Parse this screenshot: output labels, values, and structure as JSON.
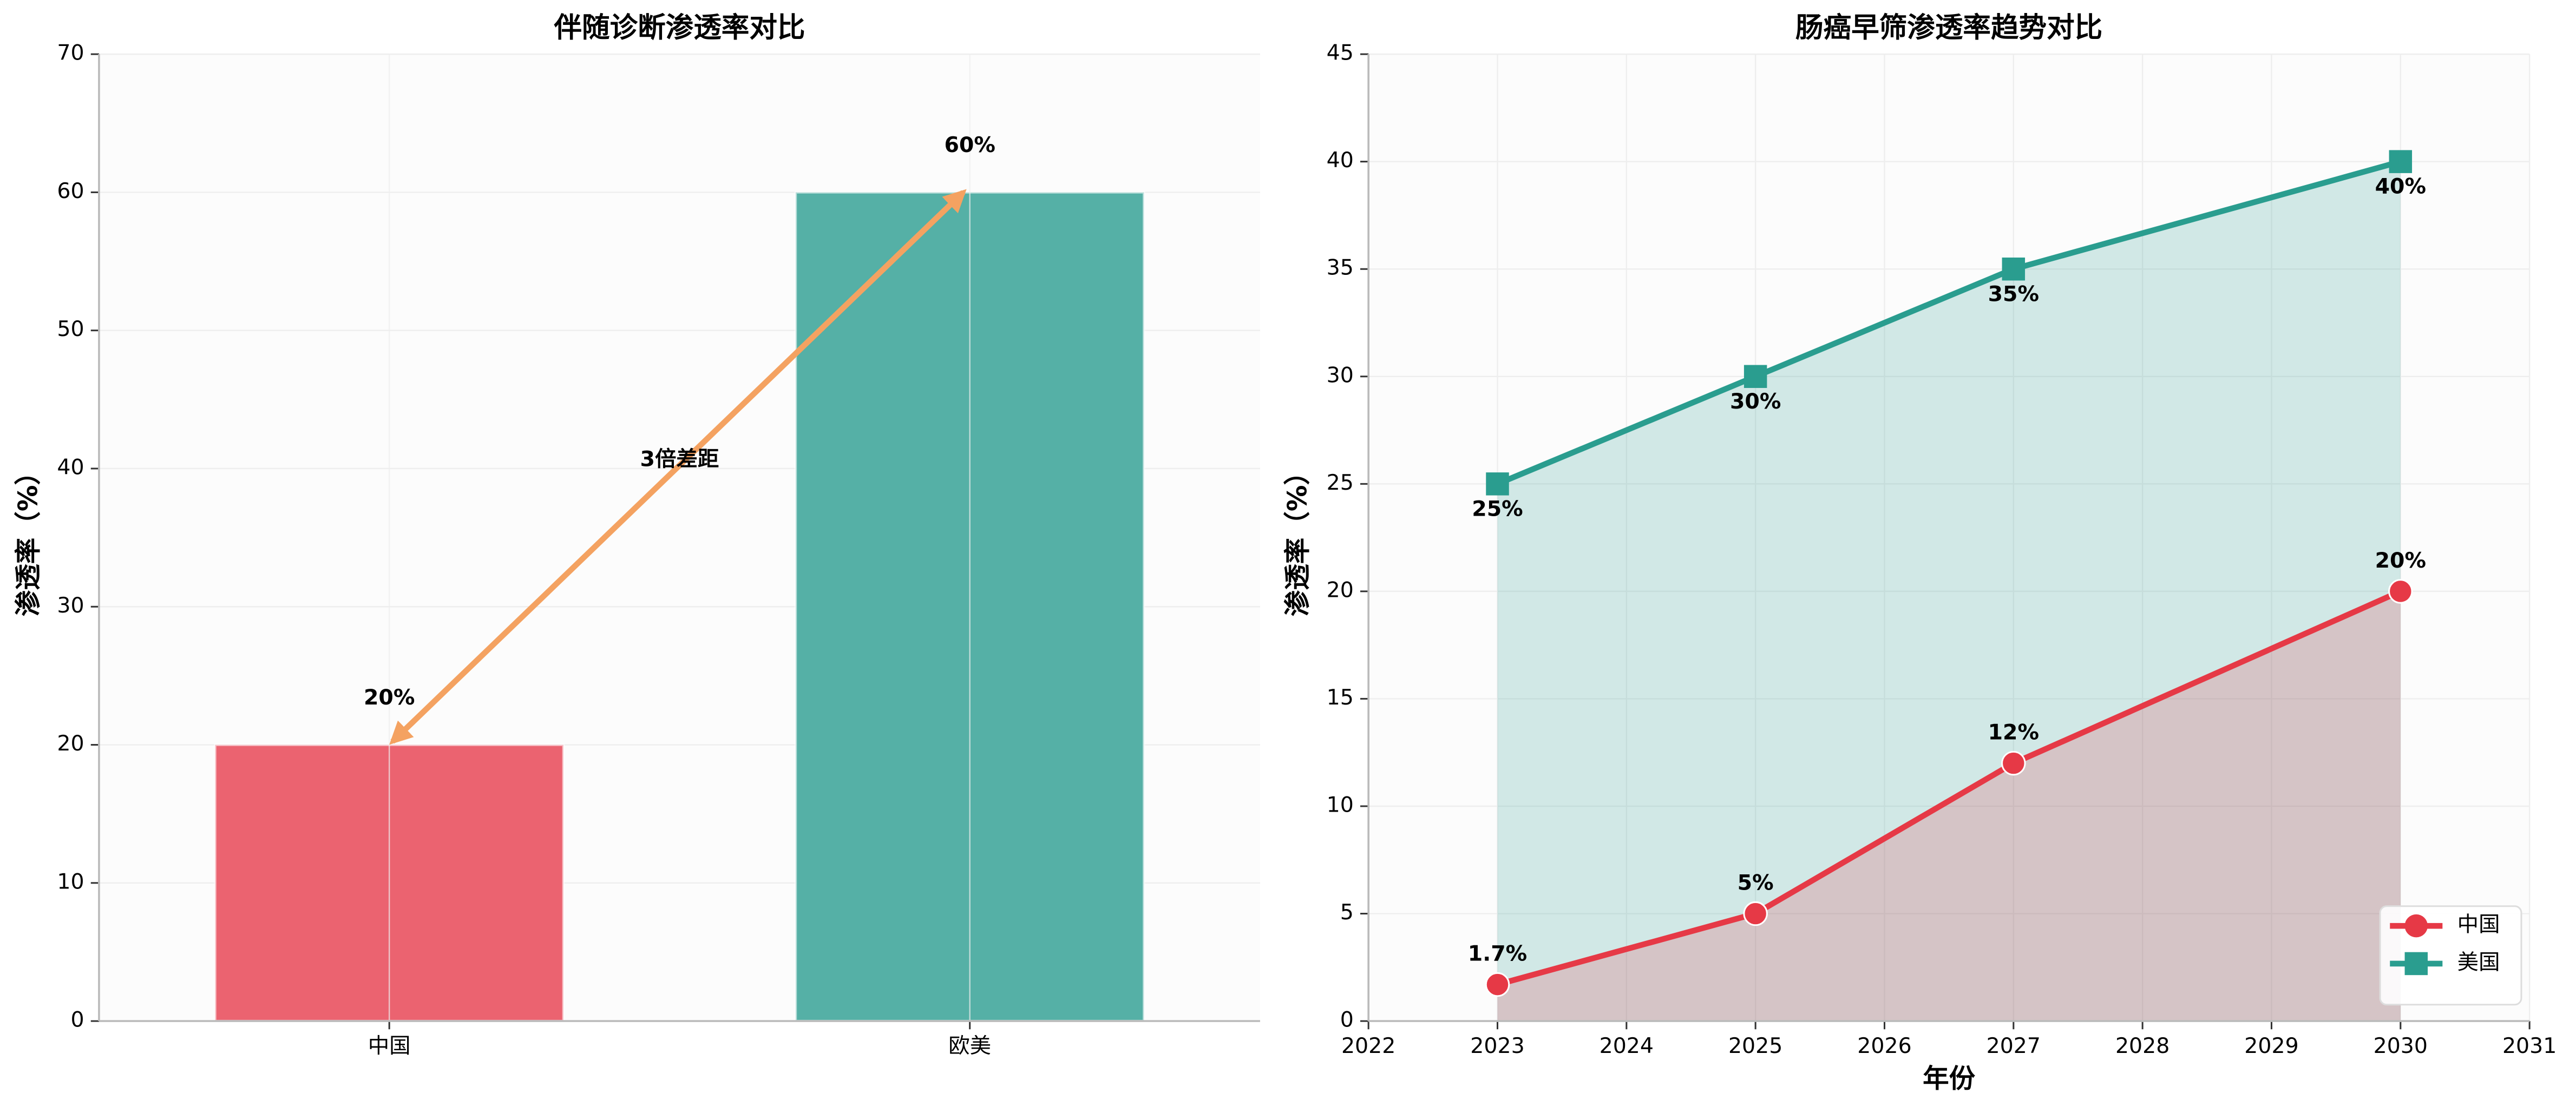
{
  "chart_data": [
    {
      "type": "bar",
      "title": "伴随诊断渗透率对比",
      "ylabel": "渗透率（%）",
      "categories": [
        "中国",
        "欧美"
      ],
      "values": [
        20,
        60
      ],
      "value_labels": [
        "20%",
        "60%"
      ],
      "colors": [
        "#eb6370",
        "#55b0a6"
      ],
      "ylim": [
        0,
        70
      ],
      "yticks": [
        0,
        10,
        20,
        30,
        40,
        50,
        60,
        70
      ],
      "grid": true,
      "annotation": "3倍差距",
      "annotation_color": "#f4a261"
    },
    {
      "type": "line",
      "title": "肠癌早筛渗透率趋势对比",
      "xlabel": "年份",
      "ylabel": "渗透率（%）",
      "x": [
        2023,
        2025,
        2027,
        2030
      ],
      "series": [
        {
          "name": "中国",
          "color": "#e63946",
          "marker": "circle",
          "values": [
            1.7,
            5,
            12,
            20
          ],
          "value_labels": [
            "1.7%",
            "5%",
            "12%",
            "20%"
          ]
        },
        {
          "name": "美国",
          "color": "#2a9d8f",
          "marker": "square",
          "values": [
            25,
            30,
            35,
            40
          ],
          "value_labels": [
            "25%",
            "30%",
            "35%",
            "40%"
          ]
        }
      ],
      "xlim": [
        2022,
        2031
      ],
      "xticks": [
        2022,
        2023,
        2024,
        2025,
        2026,
        2027,
        2028,
        2029,
        2030,
        2031
      ],
      "ylim": [
        0,
        45
      ],
      "yticks": [
        0,
        5,
        10,
        15,
        20,
        25,
        30,
        35,
        40,
        45
      ],
      "grid": true,
      "legend": "lower right"
    }
  ]
}
